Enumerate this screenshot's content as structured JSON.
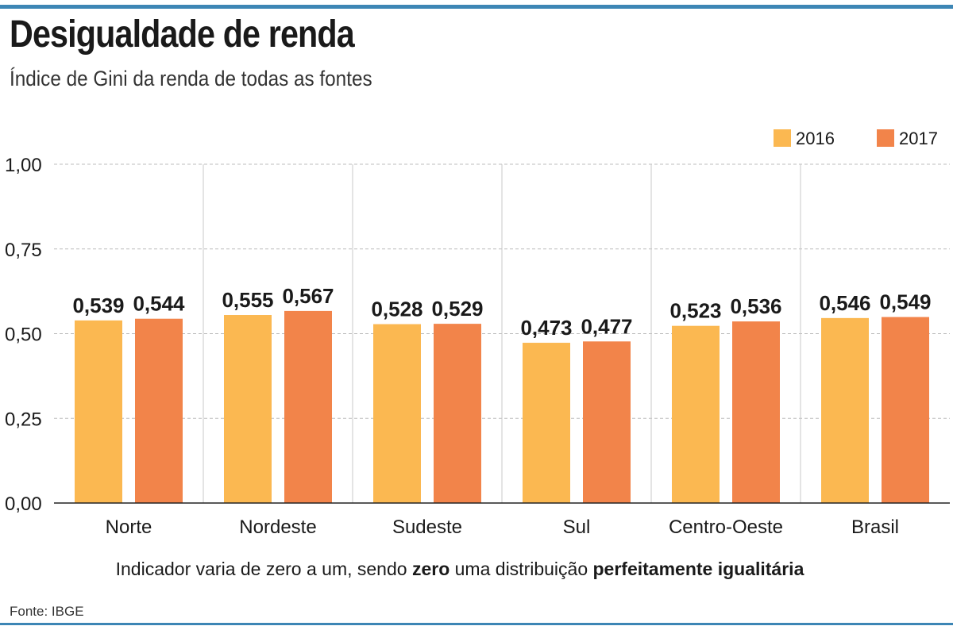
{
  "header": {
    "title": "Desigualdade de renda",
    "subtitle": "Índice de Gini da renda de todas as fontes"
  },
  "legend": [
    {
      "label": "2016",
      "color": "#fbb851"
    },
    {
      "label": "2017",
      "color": "#f2844a"
    }
  ],
  "note": {
    "part1": "Indicador varia de zero a um, sendo ",
    "bold1": "zero",
    "part2": " uma distribuição ",
    "bold2": "perfeitamente igualitária"
  },
  "source": "Fonte: IBGE",
  "chart_data": {
    "type": "bar",
    "title": "Desigualdade de renda",
    "subtitle": "Índice de Gini da renda de todas as fontes",
    "categories": [
      "Norte",
      "Nordeste",
      "Sudeste",
      "Sul",
      "Centro-Oeste",
      "Brasil"
    ],
    "series": [
      {
        "name": "2016",
        "color": "#fbb851",
        "values": [
          0.539,
          0.555,
          0.528,
          0.473,
          0.523,
          0.546
        ],
        "labels": [
          "0,539",
          "0,555",
          "0,528",
          "0,473",
          "0,523",
          "0,546"
        ]
      },
      {
        "name": "2017",
        "color": "#f2844a",
        "values": [
          0.544,
          0.567,
          0.529,
          0.477,
          0.536,
          0.549
        ],
        "labels": [
          "0,544",
          "0,567",
          "0,529",
          "0,477",
          "0,536",
          "0,549"
        ]
      }
    ],
    "yticks": [
      0,
      0.25,
      0.5,
      0.75,
      1
    ],
    "ytick_labels": [
      "0,00",
      "0,25",
      "0,50",
      "0,75",
      "1,00"
    ],
    "ylim": [
      0,
      1
    ],
    "xlabel": "",
    "ylabel": "",
    "grid": true,
    "legend_position": "top-right"
  }
}
